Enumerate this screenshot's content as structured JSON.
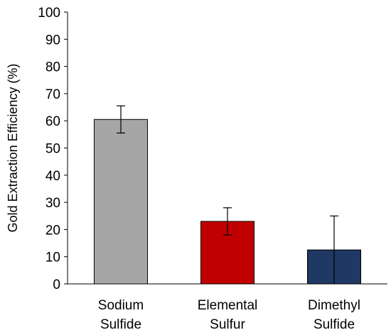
{
  "chart_data": {
    "type": "bar",
    "ylabel": "Gold Extraction Efficiency (%)",
    "ylim": [
      0,
      100
    ],
    "yticks": [
      0,
      10,
      20,
      30,
      40,
      50,
      60,
      70,
      80,
      90,
      100
    ],
    "grid": false,
    "legend": "none",
    "bars": [
      {
        "label_lines": [
          "Sodium",
          "Sulfide"
        ],
        "value": 60.5,
        "error": 5,
        "color": "#a6a6a6"
      },
      {
        "label_lines": [
          "Elemental",
          "Sulfur"
        ],
        "value": 23,
        "error": 5,
        "color": "#c00000"
      },
      {
        "label_lines": [
          "Dimethyl",
          "Sulfide"
        ],
        "value": 12.5,
        "error": 12.5,
        "color": "#1f3864"
      }
    ]
  }
}
